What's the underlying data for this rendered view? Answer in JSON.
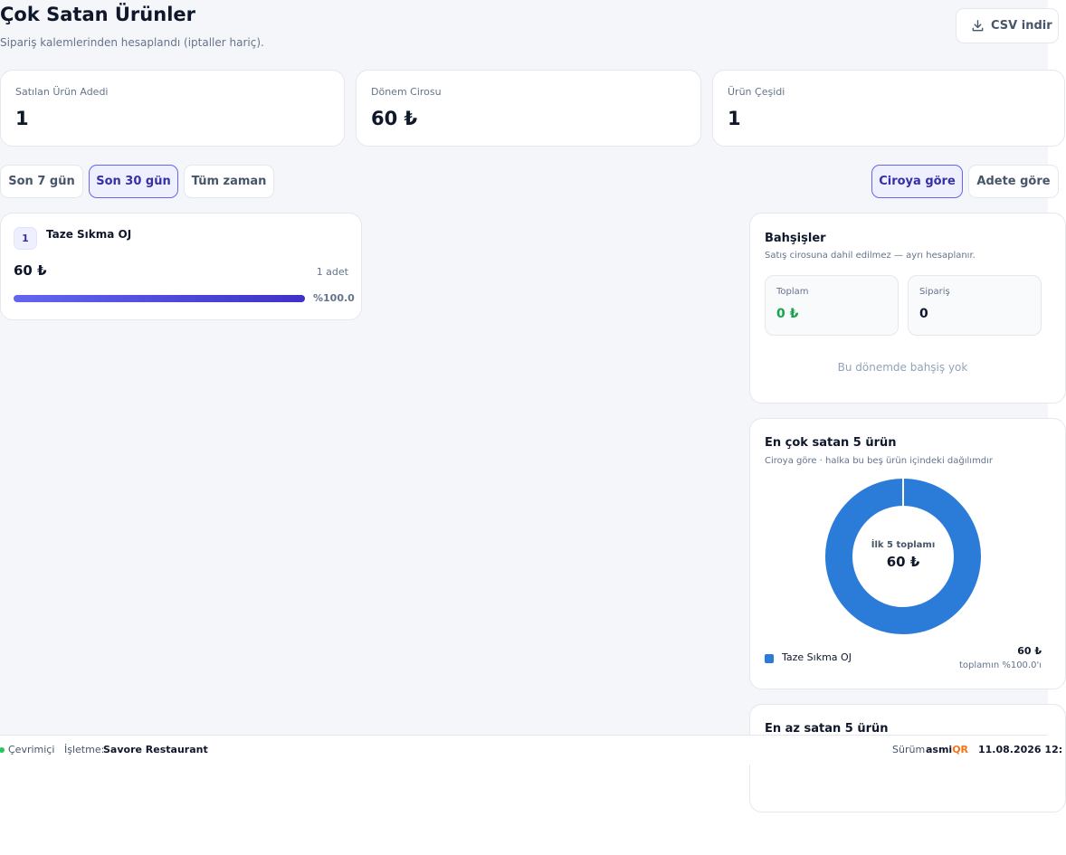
{
  "header": {
    "title": "Çok Satan Ürünler",
    "subtitle": "Sipariş kalemlerinden hesaplandı (iptaller hariç).",
    "csv_label": "CSV indir"
  },
  "stats": [
    {
      "label": "Satılan Ürün Adedi",
      "value": "1"
    },
    {
      "label": "Dönem Cirosu",
      "value": "60 ₺"
    },
    {
      "label": "Ürün Çeşidi",
      "value": "1"
    }
  ],
  "period_filters": [
    {
      "label": "Son 7 gün",
      "active": false
    },
    {
      "label": "Son 30 gün",
      "active": true
    },
    {
      "label": "Tüm zaman",
      "active": false
    }
  ],
  "sort_options": [
    {
      "label": "Ciroya göre",
      "active": true
    },
    {
      "label": "Adete göre",
      "active": false
    }
  ],
  "products": [
    {
      "rank": "1",
      "name": "Taze Sıkma OJ",
      "revenue": "60 ₺",
      "qty": "1 adet",
      "share_label": "%100.0",
      "share": 100
    }
  ],
  "tips": {
    "title": "Bahşişler",
    "subtitle": "Satış cirosuna dahil edilmez — ayrı hesaplanır.",
    "total_label": "Toplam",
    "total_value": "0 ₺",
    "orders_label": "Sipariş",
    "orders_value": "0",
    "empty_text": "Bu dönemde bahşiş yok"
  },
  "top5": {
    "title": "En çok satan 5 ürün",
    "subtitle": "Ciroya göre · halka bu beş ürün içindeki dağılımdır",
    "center_label": "İlk 5 toplamı",
    "center_value": "60 ₺",
    "legend": [
      {
        "name": "Taze Sıkma OJ",
        "value": "60 ₺",
        "share_label": "toplamın %100.0'ı",
        "color": "#2b7bd9"
      }
    ]
  },
  "bottom5": {
    "title": "En az satan 5 ürün"
  },
  "chart_data": {
    "type": "pie",
    "title": "En çok satan 5 ürün",
    "categories": [
      "Taze Sıkma OJ"
    ],
    "values": [
      60
    ],
    "colors": [
      "#2b7bd9"
    ]
  },
  "statusbar": {
    "status": "Çevrimiçi",
    "business_label": "İşletme:",
    "business_name": "Savore Restaurant",
    "version_label": "Sürüm",
    "brand_a": "asmi",
    "brand_b": "QR",
    "datetime": "11.08.2026 12:"
  },
  "colors": {
    "accent": "#6366f1",
    "accent_dark": "#3730a3",
    "donut": "#2b7bd9",
    "success": "#16a34a",
    "brand_orange": "#f97316",
    "online": "#22c55e"
  },
  "icons": {
    "csv": "download-icon",
    "status": "online-dot-icon"
  }
}
